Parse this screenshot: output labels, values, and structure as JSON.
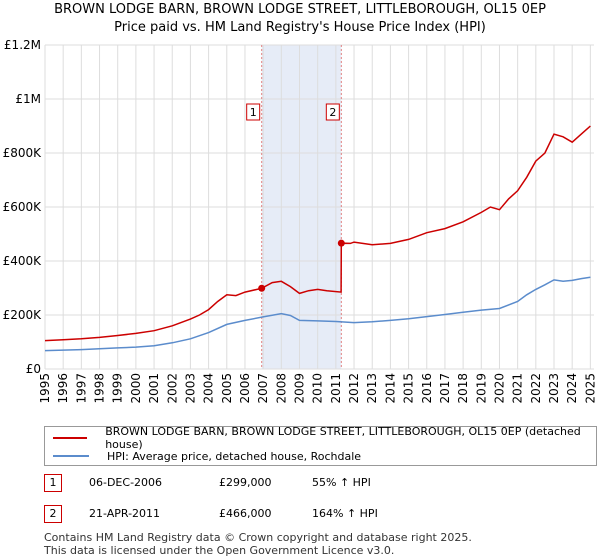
{
  "title_line1": "BROWN LODGE BARN, BROWN LODGE STREET, LITTLEBOROUGH, OL15 0EP",
  "title_line2": "Price paid vs. HM Land Registry's House Price Index (HPI)",
  "colors": {
    "property": "#cc0000",
    "hpi": "#5b8ccc",
    "shade": "#e6ecf7",
    "grid": "#dddddd"
  },
  "chart_data": {
    "type": "line",
    "xlim": [
      1995,
      2025.2
    ],
    "ylim": [
      0,
      1200000
    ],
    "y_ticks": [
      {
        "value": 0,
        "label": "£0"
      },
      {
        "value": 200000,
        "label": "£200K"
      },
      {
        "value": 400000,
        "label": "£400K"
      },
      {
        "value": 600000,
        "label": "£600K"
      },
      {
        "value": 800000,
        "label": "£800K"
      },
      {
        "value": 1000000,
        "label": "£1M"
      },
      {
        "value": 1200000,
        "label": "£1.2M"
      }
    ],
    "x_ticks": [
      "1995",
      "1996",
      "1997",
      "1998",
      "1999",
      "2000",
      "2001",
      "2002",
      "2003",
      "2004",
      "2005",
      "2006",
      "2007",
      "2008",
      "2009",
      "2010",
      "2011",
      "2012",
      "2013",
      "2014",
      "2015",
      "2016",
      "2017",
      "2018",
      "2019",
      "2020",
      "2021",
      "2022",
      "2023",
      "2024",
      "2025"
    ],
    "shaded_range": [
      2006.92,
      2011.3
    ],
    "series": [
      {
        "name": "BROWN LODGE BARN, BROWN LODGE STREET, LITTLEBOROUGH, OL15 0EP (detached house)",
        "color": "#cc0000",
        "x": [
          1995,
          1996,
          1997,
          1998,
          1999,
          2000,
          2001,
          2002,
          2003,
          2003.5,
          2004,
          2004.5,
          2005,
          2005.5,
          2006,
          2006.92,
          2007.5,
          2008,
          2008.5,
          2009,
          2009.5,
          2010,
          2010.5,
          2011.29,
          2011.3,
          2011.8,
          2012,
          2013,
          2014,
          2015,
          2016,
          2017,
          2018,
          2019,
          2019.5,
          2020,
          2020.5,
          2021,
          2021.5,
          2022,
          2022.5,
          2023,
          2023.5,
          2024,
          2024.5,
          2025
        ],
        "y": [
          105000,
          108000,
          112000,
          117000,
          124000,
          132000,
          142000,
          160000,
          185000,
          200000,
          220000,
          250000,
          275000,
          272000,
          285000,
          299000,
          320000,
          325000,
          305000,
          280000,
          290000,
          295000,
          290000,
          285000,
          466000,
          465000,
          470000,
          460000,
          465000,
          480000,
          505000,
          520000,
          545000,
          580000,
          600000,
          590000,
          630000,
          660000,
          710000,
          770000,
          800000,
          870000,
          860000,
          840000,
          870000,
          900000
        ]
      },
      {
        "name": "HPI: Average price, detached house, Rochdale",
        "color": "#5b8ccc",
        "x": [
          1995,
          1996,
          1997,
          1998,
          1999,
          2000,
          2001,
          2002,
          2003,
          2004,
          2005,
          2006,
          2007,
          2008,
          2008.5,
          2009,
          2010,
          2011,
          2012,
          2013,
          2014,
          2015,
          2016,
          2017,
          2018,
          2019,
          2020,
          2021,
          2021.5,
          2022,
          2022.5,
          2023,
          2023.5,
          2024,
          2024.5,
          2025
        ],
        "y": [
          68000,
          70000,
          72000,
          75000,
          78000,
          81000,
          86000,
          97000,
          112000,
          135000,
          165000,
          180000,
          193000,
          205000,
          198000,
          180000,
          178000,
          176000,
          172000,
          175000,
          180000,
          186000,
          194000,
          202000,
          210000,
          218000,
          224000,
          250000,
          275000,
          295000,
          312000,
          330000,
          325000,
          328000,
          335000,
          340000
        ]
      }
    ],
    "sale_markers": [
      {
        "label": "1",
        "x": 2006.92,
        "y": 299000
      },
      {
        "label": "2",
        "x": 2011.3,
        "y": 466000
      }
    ]
  },
  "legend": {
    "property_label": "BROWN LODGE BARN, BROWN LODGE STREET, LITTLEBOROUGH, OL15 0EP (detached house)",
    "hpi_label": "HPI: Average price, detached house, Rochdale"
  },
  "sales": [
    {
      "num": "1",
      "date": "06-DEC-2006",
      "price": "£299,000",
      "hpi": "55% ↑ HPI"
    },
    {
      "num": "2",
      "date": "21-APR-2011",
      "price": "£466,000",
      "hpi": "164% ↑ HPI"
    }
  ],
  "footer": {
    "line1": "Contains HM Land Registry data © Crown copyright and database right 2025.",
    "line2": "This data is licensed under the Open Government Licence v3.0."
  }
}
